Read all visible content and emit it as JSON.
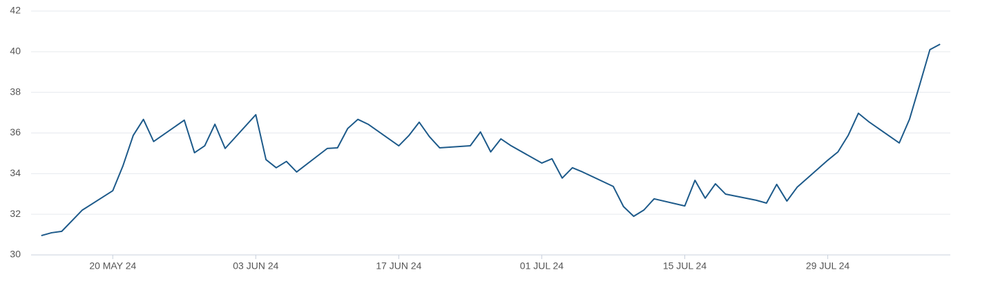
{
  "chart_data": {
    "type": "line",
    "x": [
      "2024-05-13",
      "2024-05-14",
      "2024-05-15",
      "2024-05-17",
      "2024-05-20",
      "2024-05-21",
      "2024-05-22",
      "2024-05-23",
      "2024-05-24",
      "2024-05-27",
      "2024-05-28",
      "2024-05-29",
      "2024-05-30",
      "2024-05-31",
      "2024-06-03",
      "2024-06-04",
      "2024-06-05",
      "2024-06-06",
      "2024-06-07",
      "2024-06-10",
      "2024-06-11",
      "2024-06-12",
      "2024-06-13",
      "2024-06-14",
      "2024-06-17",
      "2024-06-18",
      "2024-06-19",
      "2024-06-20",
      "2024-06-21",
      "2024-06-24",
      "2024-06-25",
      "2024-06-26",
      "2024-06-27",
      "2024-06-28",
      "2024-07-01",
      "2024-07-02",
      "2024-07-03",
      "2024-07-04",
      "2024-07-05",
      "2024-07-08",
      "2024-07-09",
      "2024-07-10",
      "2024-07-11",
      "2024-07-12",
      "2024-07-15",
      "2024-07-16",
      "2024-07-17",
      "2024-07-18",
      "2024-07-19",
      "2024-07-22",
      "2024-07-23",
      "2024-07-24",
      "2024-07-25",
      "2024-07-26",
      "2024-07-29",
      "2024-07-30",
      "2024-07-31",
      "2024-08-01",
      "2024-08-02",
      "2024-08-05",
      "2024-08-06",
      "2024-08-07",
      "2024-08-08",
      "2024-08-09"
    ],
    "series": [
      {
        "color": "#1d5a8a",
        "values": [
          30.95,
          31.09,
          31.16,
          32.2,
          33.16,
          34.39,
          35.88,
          36.67,
          35.58,
          36.63,
          35.03,
          35.37,
          36.43,
          35.24,
          36.9,
          34.69,
          34.29,
          34.6,
          34.08,
          35.24,
          35.27,
          36.22,
          36.67,
          36.43,
          35.37,
          35.88,
          36.53,
          35.82,
          35.27,
          35.37,
          36.05,
          35.07,
          35.71,
          35.37,
          34.52,
          34.73,
          33.78,
          34.29,
          34.08,
          33.37,
          32.38,
          31.9,
          32.21,
          32.76,
          32.41,
          33.67,
          32.79,
          33.5,
          32.99,
          32.69,
          32.55,
          33.47,
          32.65,
          33.33,
          34.66,
          35.07,
          35.88,
          36.97,
          36.56,
          35.51,
          36.67,
          38.37,
          40.1,
          40.37
        ]
      }
    ],
    "xlim": [
      "2024-05-12",
      "2024-08-10"
    ],
    "xticks": [
      {
        "value": "2024-05-20",
        "label": "20 MAY 24"
      },
      {
        "value": "2024-06-03",
        "label": "03 JUN 24"
      },
      {
        "value": "2024-06-17",
        "label": "17 JUN 24"
      },
      {
        "value": "2024-07-01",
        "label": "01 JUL 24"
      },
      {
        "value": "2024-07-15",
        "label": "15 JUL 24"
      },
      {
        "value": "2024-07-29",
        "label": "29 JUL 24"
      }
    ],
    "ylim": [
      30,
      42
    ],
    "yticks": [
      30,
      32,
      34,
      36,
      38,
      40,
      42
    ],
    "grid": true
  }
}
